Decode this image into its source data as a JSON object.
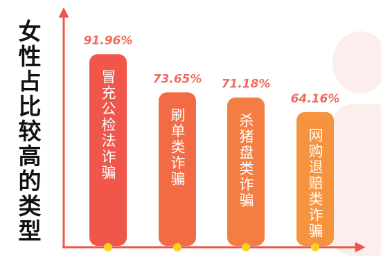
{
  "chart_data": {
    "type": "bar",
    "title": "女性占比较高的类型",
    "categories": [
      "冒充公检法诈骗",
      "刷单类诈骗",
      "杀猪盘类诈骗",
      "网购退赔类诈骗"
    ],
    "values": [
      91.96,
      73.65,
      71.18,
      64.16
    ],
    "value_labels": [
      "91.96%",
      "73.65%",
      "71.18%",
      "64.16%"
    ],
    "colors": [
      "#f0574a",
      "#f26b45",
      "#f47e42",
      "#f5933f"
    ]
  }
}
